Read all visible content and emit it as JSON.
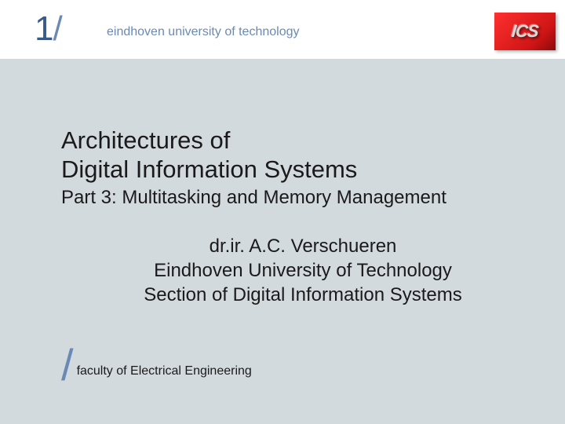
{
  "header": {
    "slide_number": "1",
    "slash": "/",
    "university": "eindhoven university of technology",
    "logo_text": "ICS"
  },
  "content": {
    "title_line1": "Architectures of",
    "title_line2": "Digital Information Systems",
    "subtitle": "Part 3: Multitasking and Memory Management",
    "author_line1": "dr.ir. A.C. Verschueren",
    "author_line2": "Eindhoven University of Technology",
    "author_line3": "Section of Digital Information Systems"
  },
  "footer": {
    "slash": "/",
    "faculty": "faculty of Electrical Engineering"
  },
  "colors": {
    "header_bg": "#ffffff",
    "content_bg": "#d3dade",
    "accent_blue": "#3a5a8a",
    "light_blue": "#6a8ab5",
    "text": "#1a1a1a",
    "logo_red": "#e01818"
  }
}
